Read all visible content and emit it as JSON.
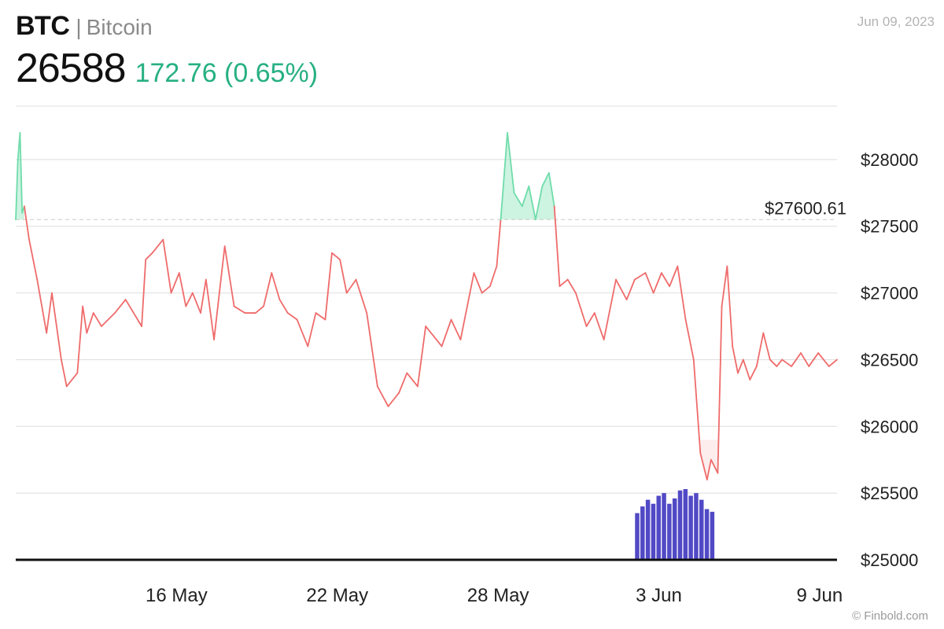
{
  "header": {
    "ticker": "BTC",
    "separator": "|",
    "name": "Bitcoin",
    "price": "26588",
    "change": "172.76 (0.65%)",
    "date": "Jun 09, 2023"
  },
  "credit": "© Finbold.com",
  "colors": {
    "up": "#27b083",
    "up_line": "#6fdcaa",
    "down_line": "#ef6b6b",
    "volume": "#5149c5",
    "grid": "#dedede",
    "reference": "#cccccc"
  },
  "chart_data": {
    "type": "line",
    "title": "",
    "xlabel": "",
    "ylabel": "",
    "ylim": [
      25000,
      28400
    ],
    "y_ticks": [
      25000,
      25500,
      26000,
      26500,
      27000,
      27500,
      28000
    ],
    "y_tick_labels": [
      "$25000",
      "$25500",
      "$26000",
      "$26500",
      "$27000",
      "$27500",
      "$28000"
    ],
    "x_ticks": [
      {
        "label": "16 May",
        "day": 6
      },
      {
        "label": "22 May",
        "day": 12
      },
      {
        "label": "28 May",
        "day": 18
      },
      {
        "label": "3 Jun",
        "day": 24
      },
      {
        "label": "9 Jun",
        "day": 30
      }
    ],
    "reference_line": {
      "value": 27550,
      "label": "$27600.61"
    },
    "series": [
      {
        "x": [
          0.0,
          0.08,
          0.16,
          0.24,
          0.32,
          0.5,
          0.8,
          1.15,
          1.35,
          1.7,
          1.9,
          2.3,
          2.5,
          2.65,
          2.9,
          3.2,
          3.7,
          4.1,
          4.7,
          4.85,
          5.1,
          5.5,
          5.8,
          6.1,
          6.35,
          6.6,
          6.9,
          7.1,
          7.4,
          7.8,
          8.15,
          8.55,
          8.95,
          9.25,
          9.55,
          9.85,
          10.15,
          10.5,
          10.9,
          11.2,
          11.55,
          11.8,
          12.1,
          12.35,
          12.7,
          13.1,
          13.5,
          13.9,
          14.3,
          14.6,
          15.0,
          15.3,
          15.7,
          15.9,
          16.25,
          16.6,
          17.1,
          17.4,
          17.7,
          17.95,
          18.1,
          18.35,
          18.6,
          18.9,
          19.15,
          19.4,
          19.65,
          19.9,
          20.1,
          20.3,
          20.6,
          20.9,
          21.3,
          21.6,
          21.95,
          22.4,
          22.8,
          23.1,
          23.5,
          23.8,
          24.1,
          24.4,
          24.7,
          25.0,
          25.3,
          25.55,
          25.8,
          25.95,
          26.2,
          26.35,
          26.55,
          26.75,
          26.95,
          27.15,
          27.4,
          27.65,
          27.9,
          28.15,
          28.4,
          28.6,
          28.95,
          29.3,
          29.6,
          29.95,
          30.35,
          30.65
        ],
        "values": [
          27550,
          28000,
          28200,
          27600,
          27650,
          27400,
          27100,
          26700,
          27000,
          26500,
          26300,
          26400,
          26900,
          26700,
          26850,
          26750,
          26850,
          26950,
          26750,
          27250,
          27300,
          27400,
          27000,
          27150,
          26900,
          27000,
          26850,
          27100,
          26650,
          27350,
          26900,
          26850,
          26850,
          26900,
          27150,
          26950,
          26850,
          26800,
          26600,
          26850,
          26800,
          27300,
          27250,
          27000,
          27100,
          26850,
          26300,
          26150,
          26250,
          26400,
          26300,
          26750,
          26650,
          26600,
          26800,
          26650,
          27150,
          27000,
          27050,
          27200,
          27550,
          28200,
          27750,
          27650,
          27800,
          27550,
          27800,
          27900,
          27650,
          27050,
          27100,
          27000,
          26750,
          26850,
          26650,
          27100,
          26950,
          27100,
          27150,
          27000,
          27150,
          27050,
          27200,
          26800,
          26500,
          25800,
          25600,
          25750,
          25650,
          26900,
          27200,
          26600,
          26400,
          26500,
          26350,
          26450,
          26700,
          26500,
          26450,
          26500,
          26450,
          26550,
          26450,
          26550,
          26450,
          26500
        ]
      },
      {
        "x": [
          23.2,
          23.4,
          23.6,
          23.8,
          24.0,
          24.2,
          24.4,
          24.6,
          24.8,
          25.0,
          25.2,
          25.4,
          25.6,
          25.8,
          26.0
        ],
        "values": [
          25350,
          25400,
          25450,
          25420,
          25480,
          25500,
          25420,
          25460,
          25520,
          25530,
          25480,
          25500,
          25450,
          25380,
          25360
        ]
      }
    ]
  }
}
